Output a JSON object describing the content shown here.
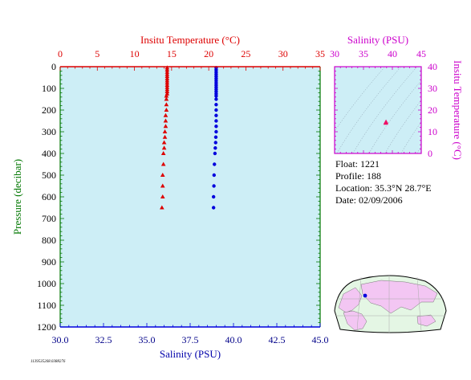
{
  "colors": {
    "temperature": "#dd0000",
    "salinity": "#0000dd",
    "inset_axis": "#cc00cc",
    "plot_bg": "#cdeef6",
    "grid_curve": "#8899aa",
    "land": "#f3c6f3",
    "map_ocean": "#e4f6e4"
  },
  "icons": {
    "temperature_marker": "triangle",
    "salinity_marker": "circle"
  },
  "info": {
    "float": "Float:  1221",
    "profile": "Profile:  188",
    "location": "Location:  35.3°N  28.7°E",
    "date": "Date:  02/09/2006"
  },
  "footer_code": "1139535268.0388276",
  "chart_data": [
    {
      "type": "scatter",
      "title": "",
      "grid": false,
      "y_axis": {
        "label": "Pressure (decibar)",
        "range": [
          0,
          1200
        ],
        "inverted": true,
        "ticks": [
          0,
          100,
          200,
          300,
          400,
          500,
          600,
          700,
          800,
          900,
          1000,
          1100,
          1200
        ]
      },
      "x_top_axis": {
        "label": "Insitu Temperature (°C)",
        "range": [
          0,
          35
        ],
        "ticks": [
          0,
          5,
          10,
          15,
          20,
          25,
          30,
          35
        ]
      },
      "x_bottom_axis": {
        "label": "Salinity (PSU)",
        "range": [
          30.0,
          45.0
        ],
        "ticks": [
          "30.0",
          "32.5",
          "35.0",
          "37.5",
          "40.0",
          "42.5",
          "45.0"
        ]
      },
      "series": [
        {
          "axis": "top",
          "marker": "triangle",
          "pressure": [
            5,
            15,
            25,
            35,
            45,
            55,
            65,
            75,
            85,
            95,
            105,
            115,
            125,
            135,
            150,
            175,
            200,
            225,
            250,
            275,
            300,
            325,
            350,
            375,
            400,
            450,
            500,
            550,
            600,
            650
          ],
          "x": [
            14.4,
            14.4,
            14.4,
            14.4,
            14.4,
            14.4,
            14.4,
            14.4,
            14.4,
            14.4,
            14.4,
            14.4,
            14.4,
            14.3,
            14.3,
            14.3,
            14.3,
            14.2,
            14.2,
            14.2,
            14.1,
            14.1,
            14.0,
            14.0,
            13.9,
            13.9,
            13.8,
            13.8,
            13.8,
            13.7
          ]
        },
        {
          "axis": "bottom",
          "marker": "circle",
          "pressure": [
            5,
            15,
            25,
            35,
            45,
            55,
            65,
            75,
            85,
            95,
            105,
            115,
            125,
            135,
            150,
            175,
            200,
            225,
            250,
            275,
            300,
            325,
            350,
            375,
            400,
            450,
            500,
            550,
            600,
            650
          ],
          "x": [
            39.0,
            39.0,
            39.0,
            39.0,
            39.0,
            39.0,
            39.0,
            39.0,
            39.0,
            39.0,
            39.0,
            39.0,
            39.0,
            39.0,
            39.0,
            39.0,
            39.0,
            39.0,
            39.0,
            39.0,
            39.0,
            38.98,
            38.97,
            38.95,
            38.93,
            38.9,
            38.88,
            38.87,
            38.85,
            38.85
          ]
        }
      ]
    },
    {
      "type": "scatter",
      "title": "",
      "x_axis": {
        "label": "Salinity (PSU)",
        "range": [
          30,
          45
        ],
        "ticks": [
          30,
          35,
          40,
          45
        ]
      },
      "y_axis": {
        "label": "Insitu Temperature (°C)",
        "range": [
          0,
          40
        ],
        "ticks": [
          0,
          10,
          20,
          30,
          40
        ]
      },
      "series": [
        {
          "marker": "triangle",
          "x": [
            38.9,
            38.85
          ],
          "y": [
            14.4,
            14.0
          ]
        }
      ]
    }
  ],
  "map": {
    "marker": {
      "lat": 35.3,
      "lon": 28.7
    }
  }
}
